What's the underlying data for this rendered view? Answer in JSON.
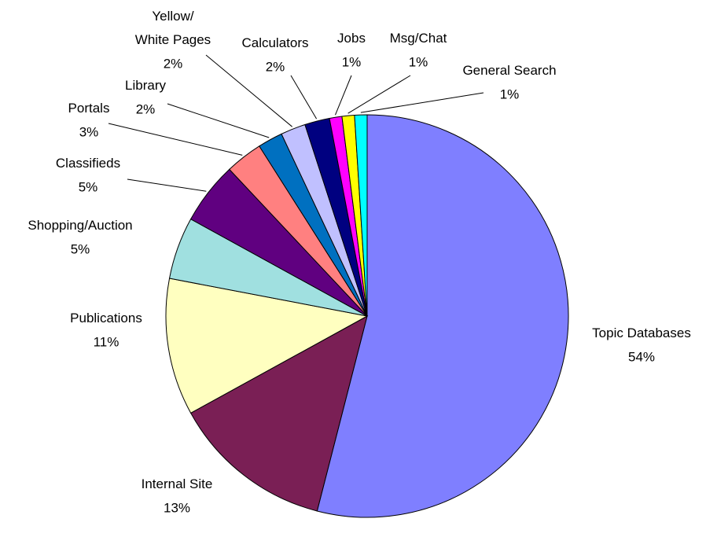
{
  "chart_data": {
    "type": "pie",
    "categories": [
      "Topic Databases",
      "Internal Site",
      "Publications",
      "Shopping/Auction",
      "Classifieds",
      "Portals",
      "Library",
      "Yellow/\nWhite Pages",
      "Calculators",
      "Jobs",
      "Msg/Chat",
      "General Search"
    ],
    "values": [
      54,
      13,
      11,
      5,
      5,
      3,
      2,
      2,
      2,
      1,
      1,
      1
    ],
    "value_labels": [
      "54%",
      "13%",
      "11%",
      "5%",
      "5%",
      "3%",
      "2%",
      "2%",
      "2%",
      "1%",
      "1%",
      "1%"
    ],
    "colors": [
      "#7f7fff",
      "#7a1f55",
      "#ffffc0",
      "#a0e0e0",
      "#600080",
      "#ff8080",
      "#0070c0",
      "#c0c0ff",
      "#000080",
      "#ff00ff",
      "#ffff00",
      "#00ffff"
    ]
  }
}
